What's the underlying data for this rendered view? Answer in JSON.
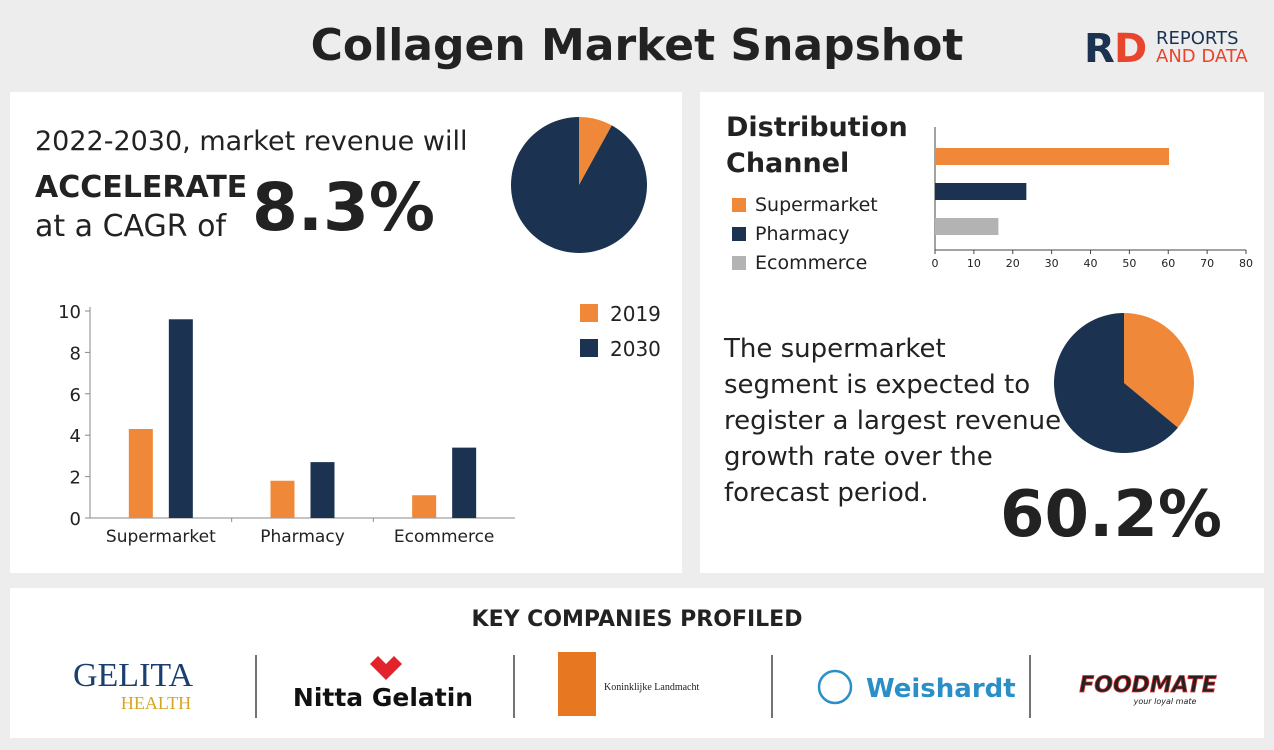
{
  "title": "Collagen Market Snapshot",
  "brand": {
    "letters": [
      "R",
      "D"
    ],
    "line1": "REPORTS",
    "line2": "AND DATA"
  },
  "cagr": {
    "lines": [
      "2022-2030, market revenue will",
      "ACCELERATE",
      "at a CAGR of"
    ],
    "value": "8.3%"
  },
  "chart_data": [
    {
      "type": "pie",
      "values": [
        8,
        92
      ],
      "colors": [
        "#f0883a",
        "#1b3350"
      ]
    },
    {
      "type": "hbar",
      "title": [
        "Distribution",
        "Channel"
      ],
      "categories": [
        "Supermarket",
        "Pharmacy",
        "Ecommerce"
      ],
      "values": [
        60.2,
        23.5,
        16.3
      ],
      "colors": [
        "#f0883a",
        "#1b3350",
        "#b3b3b3"
      ],
      "xlim": [
        0,
        80
      ],
      "xticks": [
        0,
        10,
        20,
        30,
        40,
        50,
        60,
        70,
        80
      ]
    },
    {
      "type": "bar",
      "categories": [
        "Supermarket",
        "Pharmacy",
        "Ecommerce"
      ],
      "series": [
        {
          "name": "2019",
          "color": "#f0883a",
          "values": [
            4.3,
            1.8,
            1.1
          ]
        },
        {
          "name": "2030",
          "color": "#1b3350",
          "values": [
            9.6,
            2.7,
            3.4
          ]
        }
      ],
      "ylim": [
        0,
        10
      ],
      "yticks": [
        0,
        2,
        4,
        6,
        8,
        10
      ]
    },
    {
      "type": "pie",
      "values": [
        36,
        64
      ],
      "colors": [
        "#f0883a",
        "#1b3350"
      ]
    }
  ],
  "supermarket": {
    "lines": [
      "The supermarket",
      "segment is expected to",
      "register a largest revenue",
      "growth rate over the",
      "forecast period."
    ],
    "value": "60.2%"
  },
  "companies": {
    "heading": "KEY COMPANIES PROFILED",
    "gelita": [
      "GELITA",
      "HEALTH"
    ],
    "nitta": "Nitta Gelatin",
    "landmacht": "Koninklijke Landmacht",
    "weishardt": "Weishardt",
    "foodmate": [
      "FOODMATE",
      "your loyal mate"
    ]
  }
}
